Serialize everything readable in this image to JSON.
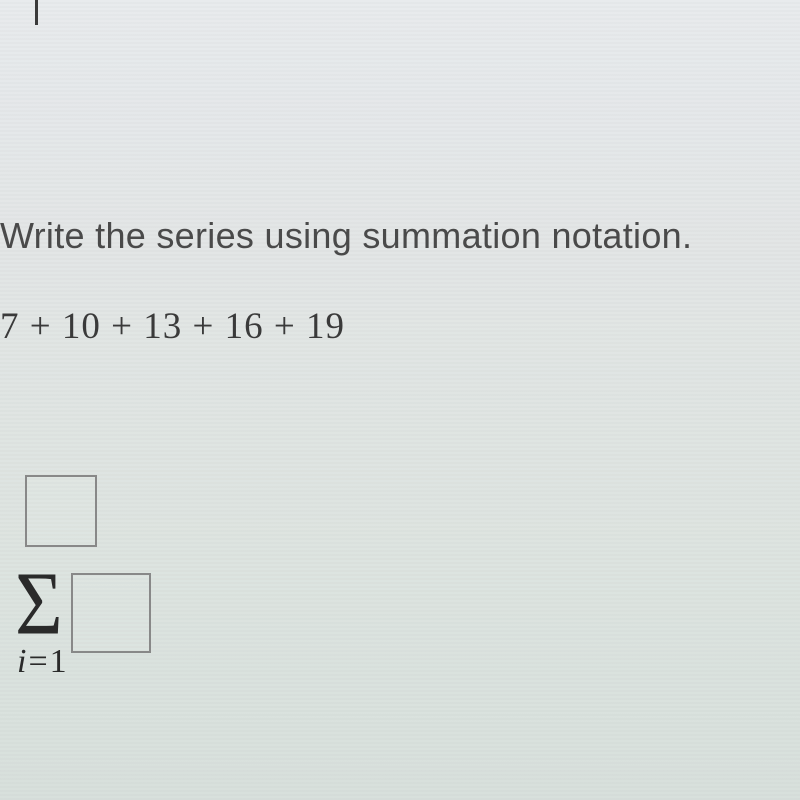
{
  "question": {
    "prompt": "Write the series using summation notation.",
    "series_expression": "7 + 10 + 13 + 16 + 19"
  },
  "summation": {
    "sigma_symbol": "Σ",
    "lower_index_var": "i",
    "lower_index_eq": "=",
    "lower_index_val": "1",
    "upper_box_value": "",
    "expression_box_value": ""
  },
  "styling": {
    "background_top": "#e8ebed",
    "background_bottom": "#d8e0dc",
    "text_color": "#4a4a4a",
    "math_color": "#3a3a3a",
    "box_border": "#888888",
    "question_fontsize": 36,
    "series_fontsize": 37,
    "sigma_fontsize": 82,
    "limit_fontsize": 34,
    "box_size": 75
  }
}
